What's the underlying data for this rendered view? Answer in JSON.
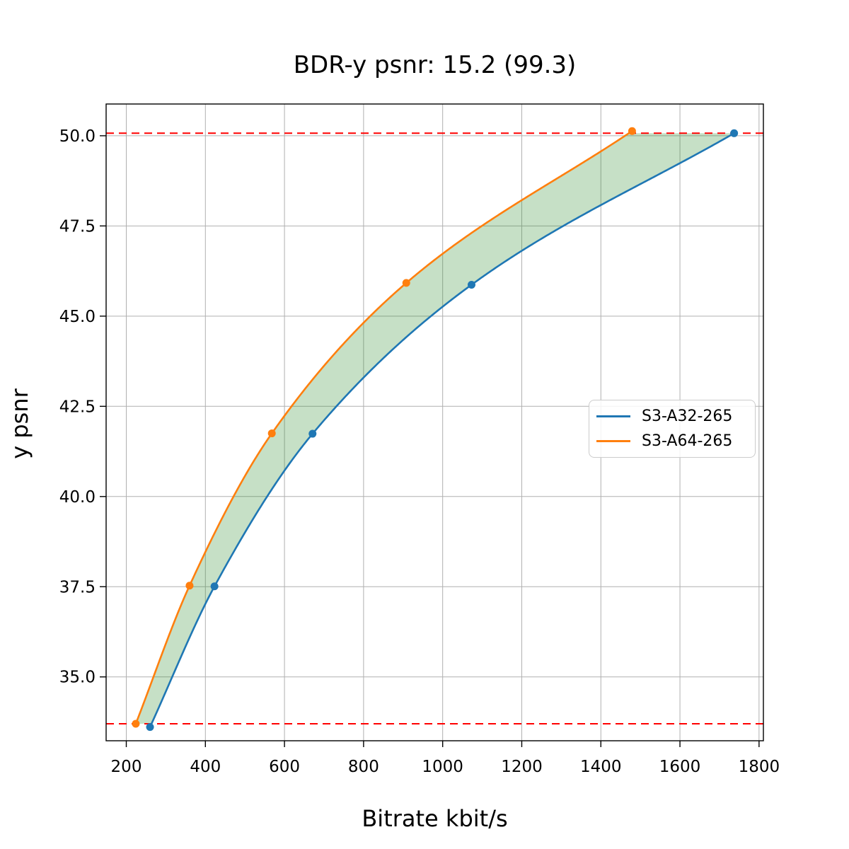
{
  "figure": {
    "title": "BDR-y psnr: 15.2 (99.3)",
    "xlabel": "Bitrate kbit/s",
    "ylabel": "y psnr"
  },
  "chart_data": {
    "type": "line",
    "title": "BDR-y psnr: 15.2 (99.3)",
    "xlabel": "Bitrate kbit/s",
    "ylabel": "y psnr",
    "xlim": [
      149,
      1811
    ],
    "ylim": [
      33.23,
      50.88
    ],
    "xticks": [
      200,
      400,
      600,
      800,
      1000,
      1200,
      1400,
      1600,
      1800
    ],
    "xtick_labels": [
      "200",
      "400",
      "600",
      "800",
      "1000",
      "1200",
      "1400",
      "1600",
      "1800"
    ],
    "yticks": [
      35.0,
      37.5,
      40.0,
      42.5,
      45.0,
      47.5,
      50.0
    ],
    "ytick_labels": [
      "35.0",
      "37.5",
      "40.0",
      "42.5",
      "45.0",
      "47.5",
      "50.0"
    ],
    "grid": true,
    "grid_color": "#b0b0b0",
    "legend_position": "center right",
    "series": [
      {
        "name": "S3-A32-265",
        "color": "#1f77b4",
        "x": [
          260,
          423,
          671,
          1073,
          1737
        ],
        "y": [
          33.61,
          37.51,
          41.74,
          45.87,
          50.07
        ]
      },
      {
        "name": "S3-A64-265",
        "color": "#ff7f0e",
        "x": [
          224,
          360,
          568,
          908,
          1479
        ],
        "y": [
          33.7,
          37.53,
          41.75,
          45.92,
          50.13
        ]
      }
    ],
    "overlap_hlines": {
      "values": [
        33.7,
        50.07
      ],
      "color": "#ff0000",
      "style": "dashed"
    },
    "fill_between": {
      "between": [
        "S3-A64-265",
        "S3-A32-265"
      ],
      "y_range": [
        33.7,
        50.07
      ],
      "color": "#2e8b2e",
      "opacity": 0.27
    }
  }
}
